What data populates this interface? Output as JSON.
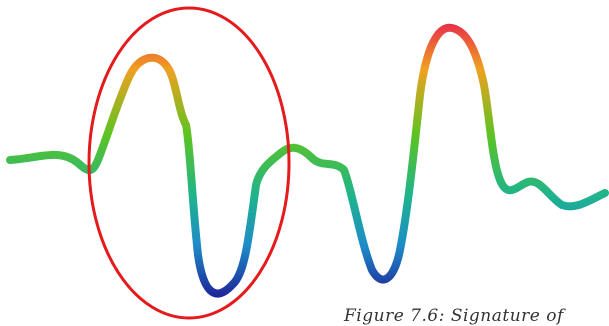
{
  "figure": {
    "caption": "Figure 7.6: Signature of"
  },
  "colors": {
    "background": "#ffffff",
    "highlight_ellipse": "#e41a1c",
    "gradient_high": "#e8334a",
    "gradient_mid_high": "#f0a020",
    "gradient_mid": "#5cc322",
    "gradient_mid_low": "#1eb48c",
    "gradient_low_mid": "#1e8cc8",
    "gradient_low": "#1e1e96"
  }
}
